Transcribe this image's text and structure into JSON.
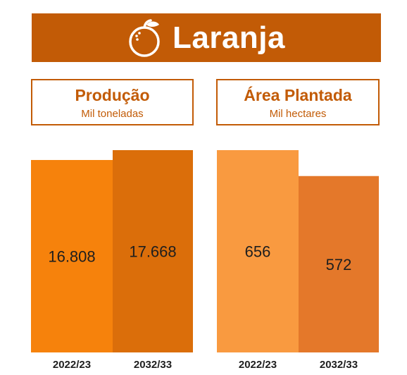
{
  "header": {
    "title": "Laranja",
    "icon": "orange-icon",
    "color": "#c25b06"
  },
  "panels": [
    {
      "title": "Produção",
      "subtitle": "Mil toneladas"
    },
    {
      "title": "Área Plantada",
      "subtitle": "Mil hectares"
    }
  ],
  "chart_data": [
    {
      "type": "bar",
      "title": "Produção",
      "subtitle": "Mil toneladas",
      "categories": [
        "2022/23",
        "2032/33"
      ],
      "values": [
        16808,
        17668
      ],
      "value_labels": [
        "16.808",
        "17.668"
      ],
      "colors": [
        "#f6820c",
        "#db6e0a"
      ]
    },
    {
      "type": "bar",
      "title": "Área Plantada",
      "subtitle": "Mil hectares",
      "categories": [
        "2022/23",
        "2032/33"
      ],
      "values": [
        656,
        572
      ],
      "value_labels": [
        "656",
        "572"
      ],
      "colors": [
        "#f99a40",
        "#e4782a"
      ]
    }
  ]
}
